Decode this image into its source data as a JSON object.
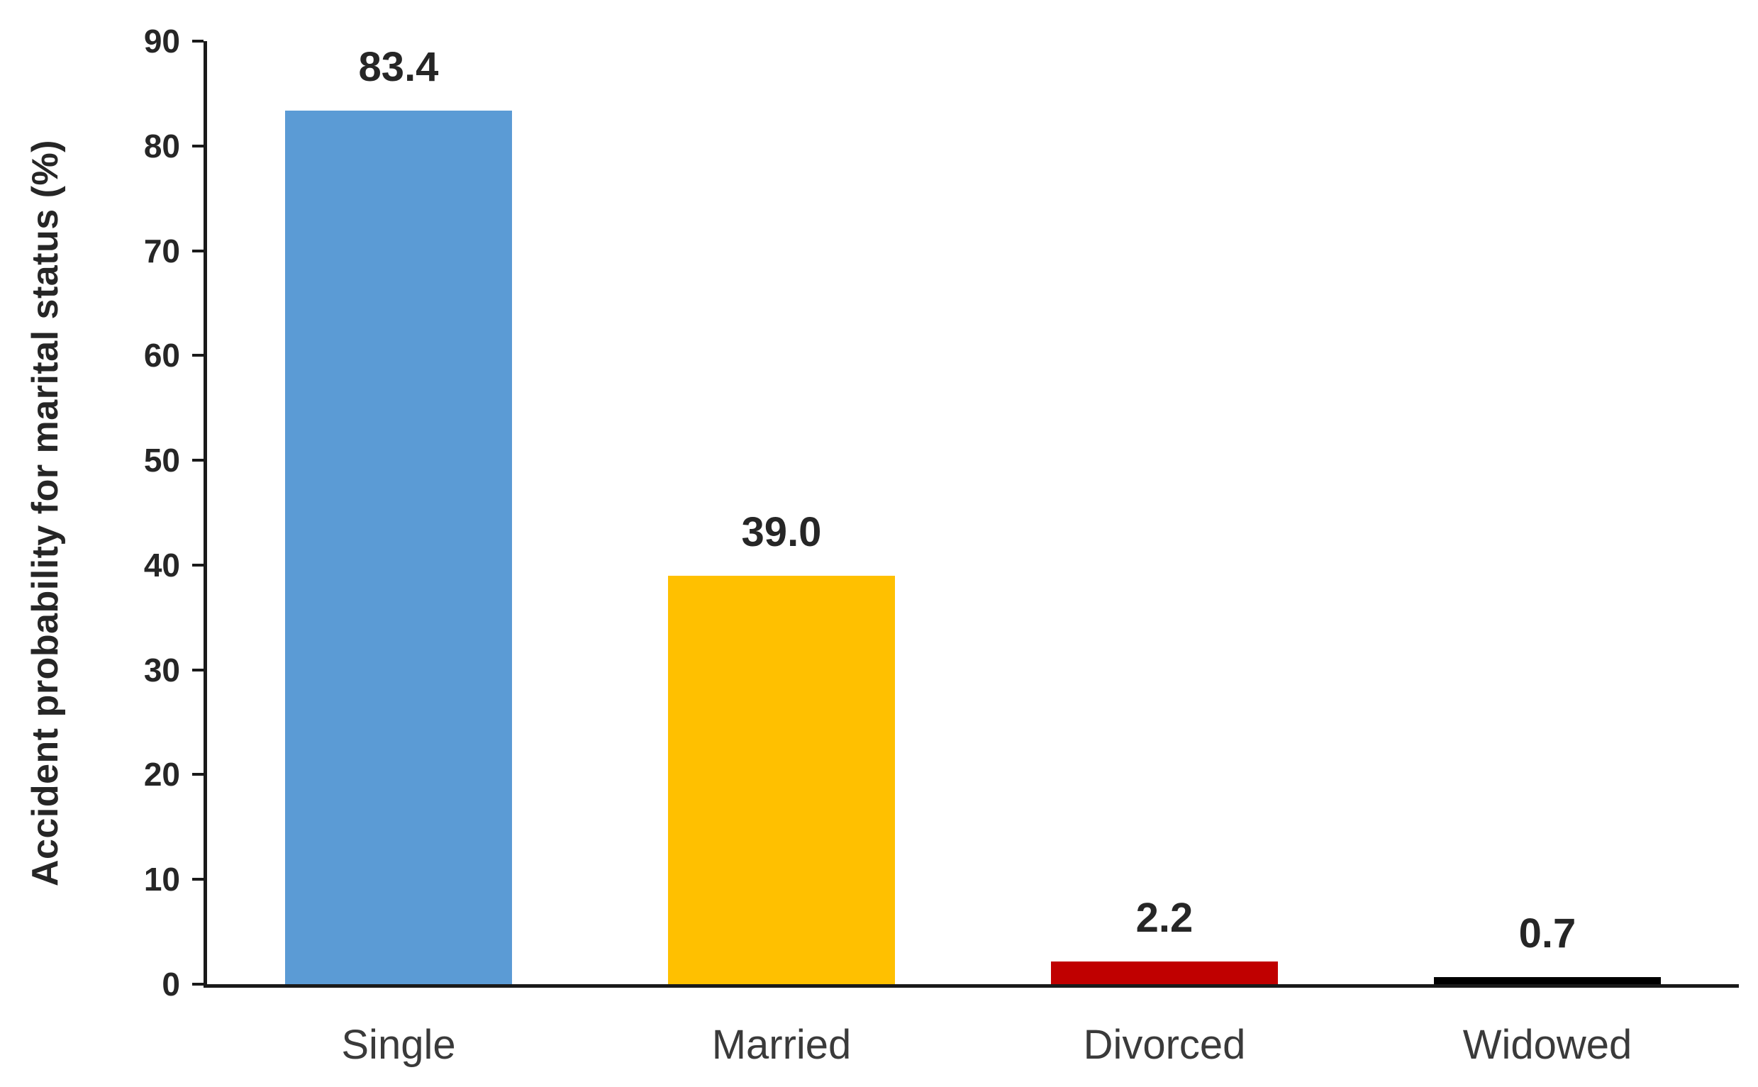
{
  "chart_data": {
    "type": "bar",
    "title": "",
    "categories": [
      "Single",
      "Married",
      "Divorced",
      "Widowed"
    ],
    "values": [
      83.4,
      39.0,
      2.2,
      0.7
    ],
    "value_labels": [
      "83.4",
      "39.0",
      "2.2",
      "0.7"
    ],
    "bar_colors": [
      "#5B9BD5",
      "#FFC000",
      "#C00000",
      "#000000"
    ],
    "xlabel": "",
    "ylabel": "Accident probability for marital status (%)",
    "ylim": [
      0,
      90
    ],
    "yticks": [
      0,
      10,
      20,
      30,
      40,
      50,
      60,
      70,
      80,
      90
    ],
    "grid": false,
    "legend": false,
    "layout": {
      "orientation": "vertical",
      "value_labels_position": "above-bars",
      "tick_marks": "outside-left"
    }
  },
  "colors": {
    "background": "#ffffff",
    "axis": "#1a1a1a",
    "tick_label_text": "#262626",
    "value_label_text": "#262626",
    "category_label_text": "#3a3a3a"
  }
}
